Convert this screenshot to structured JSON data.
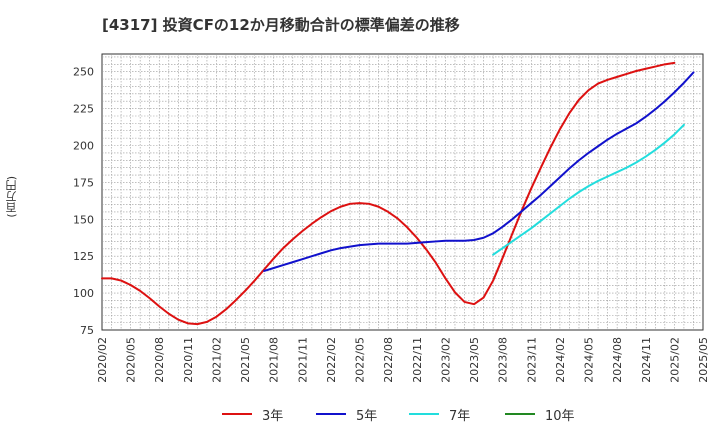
{
  "chart_data": {
    "type": "line",
    "title": "[4317]  投資CFの12か月移動合計の標準偏差の推移",
    "ylabel": "(百万円)",
    "xlabel": "",
    "ylim": [
      75,
      262
    ],
    "yticks": [
      75,
      100,
      125,
      150,
      175,
      200,
      225,
      250
    ],
    "xticks": [
      "2020/02",
      "2020/05",
      "2020/08",
      "2020/11",
      "2021/02",
      "2021/05",
      "2021/08",
      "2021/11",
      "2022/02",
      "2022/05",
      "2022/08",
      "2022/11",
      "2023/02",
      "2023/05",
      "2023/08",
      "2023/11",
      "2024/02",
      "2024/05",
      "2024/08",
      "2024/11",
      "2025/02",
      "2025/05"
    ],
    "grid": true,
    "legend_position": "bottom",
    "series": [
      {
        "name": "3年",
        "color": "#dd1111",
        "points": [
          [
            "2020/02",
            110
          ],
          [
            "2020/03",
            110
          ],
          [
            "2020/04",
            108.5
          ],
          [
            "2020/05",
            105.5
          ],
          [
            "2020/06",
            101.5
          ],
          [
            "2020/07",
            96.5
          ],
          [
            "2020/08",
            91
          ],
          [
            "2020/09",
            86
          ],
          [
            "2020/10",
            82
          ],
          [
            "2020/11",
            79.5
          ],
          [
            "2020/12",
            79
          ],
          [
            "2021/01",
            80.5
          ],
          [
            "2021/02",
            84
          ],
          [
            "2021/03",
            89
          ],
          [
            "2021/04",
            95
          ],
          [
            "2021/05",
            101.5
          ],
          [
            "2021/06",
            108.5
          ],
          [
            "2021/07",
            116
          ],
          [
            "2021/08",
            123.5
          ],
          [
            "2021/09",
            130.5
          ],
          [
            "2021/10",
            136.5
          ],
          [
            "2021/11",
            142
          ],
          [
            "2021/12",
            147
          ],
          [
            "2022/01",
            151.5
          ],
          [
            "2022/02",
            155.5
          ],
          [
            "2022/03",
            158.5
          ],
          [
            "2022/04",
            160.5
          ],
          [
            "2022/05",
            161
          ],
          [
            "2022/06",
            160.5
          ],
          [
            "2022/07",
            158.5
          ],
          [
            "2022/08",
            155
          ],
          [
            "2022/09",
            150.5
          ],
          [
            "2022/10",
            144.5
          ],
          [
            "2022/11",
            137.5
          ],
          [
            "2022/12",
            129.5
          ],
          [
            "2023/01",
            120.5
          ],
          [
            "2023/02",
            110
          ],
          [
            "2023/03",
            100.5
          ],
          [
            "2023/04",
            94
          ],
          [
            "2023/05",
            92.5
          ],
          [
            "2023/06",
            97
          ],
          [
            "2023/07",
            108.5
          ],
          [
            "2023/08",
            124
          ],
          [
            "2023/09",
            140
          ],
          [
            "2023/10",
            156
          ],
          [
            "2023/11",
            171
          ],
          [
            "2023/12",
            185
          ],
          [
            "2024/01",
            198.5
          ],
          [
            "2024/02",
            211
          ],
          [
            "2024/03",
            222
          ],
          [
            "2024/04",
            231
          ],
          [
            "2024/05",
            237.5
          ],
          [
            "2024/06",
            242
          ],
          [
            "2024/07",
            244.5
          ],
          [
            "2024/08",
            246.5
          ],
          [
            "2024/09",
            248.5
          ],
          [
            "2024/10",
            250.5
          ],
          [
            "2024/11",
            252
          ],
          [
            "2024/12",
            253.5
          ],
          [
            "2025/01",
            255
          ],
          [
            "2025/02",
            256
          ]
        ]
      },
      {
        "name": "5年",
        "color": "#1111cc",
        "points": [
          [
            "2021/07",
            115
          ],
          [
            "2021/08",
            117
          ],
          [
            "2021/09",
            119
          ],
          [
            "2021/10",
            121
          ],
          [
            "2021/11",
            123
          ],
          [
            "2021/12",
            125
          ],
          [
            "2022/01",
            127
          ],
          [
            "2022/02",
            129
          ],
          [
            "2022/03",
            130.5
          ],
          [
            "2022/04",
            131.5
          ],
          [
            "2022/05",
            132.5
          ],
          [
            "2022/06",
            133
          ],
          [
            "2022/07",
            133.5
          ],
          [
            "2022/08",
            133.5
          ],
          [
            "2022/09",
            133.5
          ],
          [
            "2022/10",
            133.5
          ],
          [
            "2022/11",
            134
          ],
          [
            "2022/12",
            134.5
          ],
          [
            "2023/01",
            135
          ],
          [
            "2023/02",
            135.5
          ],
          [
            "2023/03",
            135.5
          ],
          [
            "2023/04",
            135.5
          ],
          [
            "2023/05",
            136
          ],
          [
            "2023/06",
            137.5
          ],
          [
            "2023/07",
            140.5
          ],
          [
            "2023/08",
            145
          ],
          [
            "2023/09",
            150
          ],
          [
            "2023/10",
            155.5
          ],
          [
            "2023/11",
            161
          ],
          [
            "2023/12",
            166.5
          ],
          [
            "2024/01",
            172.5
          ],
          [
            "2024/02",
            178.5
          ],
          [
            "2024/03",
            184.5
          ],
          [
            "2024/04",
            190
          ],
          [
            "2024/05",
            195
          ],
          [
            "2024/06",
            199.5
          ],
          [
            "2024/07",
            204
          ],
          [
            "2024/08",
            208
          ],
          [
            "2024/09",
            211.5
          ],
          [
            "2024/10",
            215
          ],
          [
            "2024/11",
            219.5
          ],
          [
            "2024/12",
            224.5
          ],
          [
            "2025/01",
            230
          ],
          [
            "2025/02",
            236
          ],
          [
            "2025/03",
            242.5
          ],
          [
            "2025/04",
            249.5
          ]
        ]
      },
      {
        "name": "7年",
        "color": "#22dddd",
        "points": [
          [
            "2023/07",
            126
          ],
          [
            "2023/08",
            130.5
          ],
          [
            "2023/09",
            135
          ],
          [
            "2023/10",
            139.5
          ],
          [
            "2023/11",
            144
          ],
          [
            "2023/12",
            149
          ],
          [
            "2024/01",
            154
          ],
          [
            "2024/02",
            159
          ],
          [
            "2024/03",
            164
          ],
          [
            "2024/04",
            168.5
          ],
          [
            "2024/05",
            172.5
          ],
          [
            "2024/06",
            176
          ],
          [
            "2024/07",
            179
          ],
          [
            "2024/08",
            182
          ],
          [
            "2024/09",
            185
          ],
          [
            "2024/10",
            188.5
          ],
          [
            "2024/11",
            192.5
          ],
          [
            "2024/12",
            197
          ],
          [
            "2025/01",
            202
          ],
          [
            "2025/02",
            207.5
          ],
          [
            "2025/03",
            214
          ]
        ]
      },
      {
        "name": "10年",
        "color": "#228822",
        "points": []
      }
    ]
  }
}
